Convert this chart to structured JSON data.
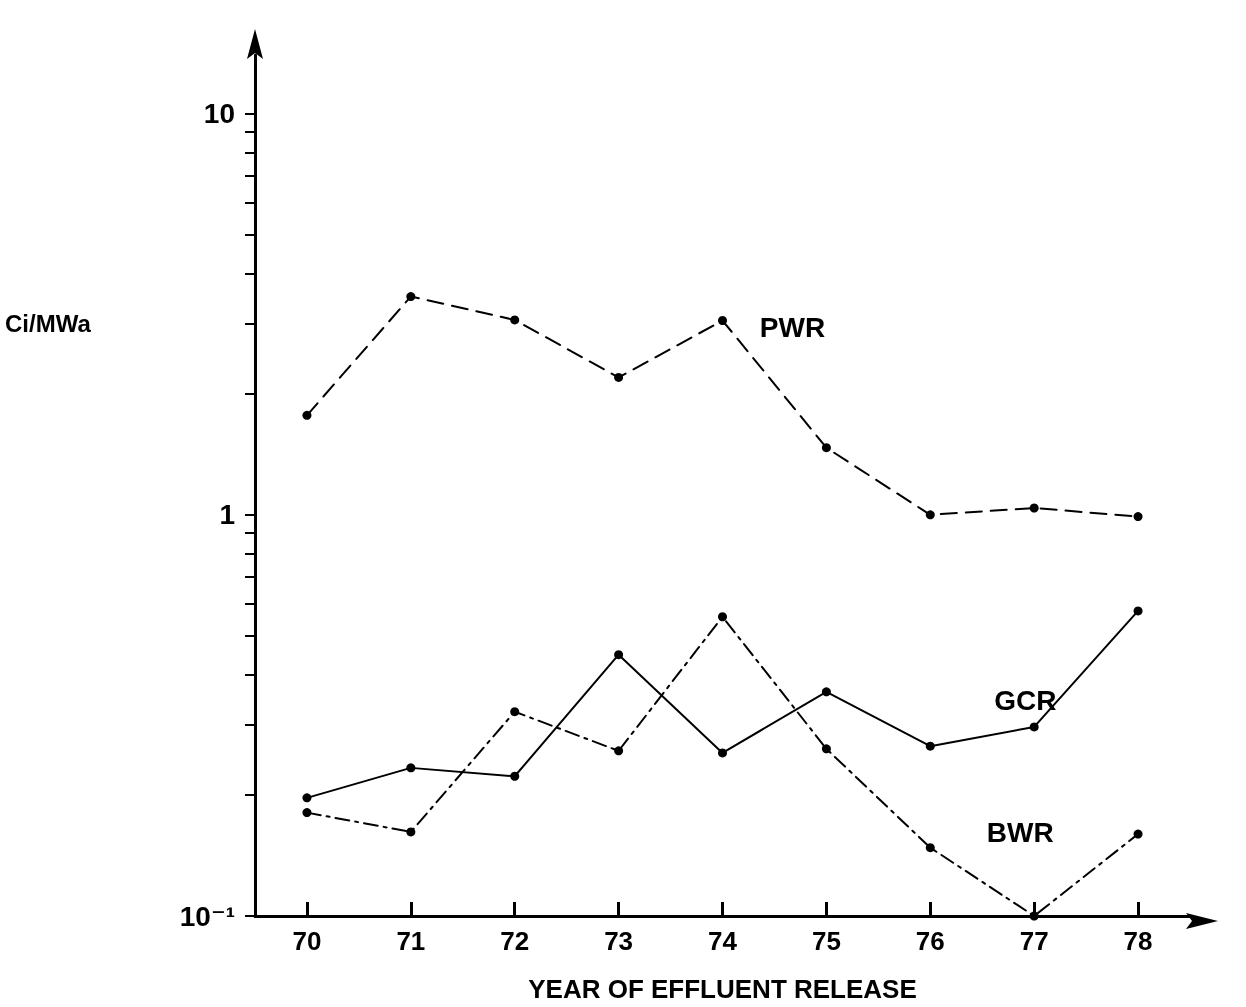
{
  "chart_data": {
    "type": "line",
    "xlabel": "YEAR OF EFFLUENT RELEASE",
    "ylabel": "Ci/MWa",
    "categories": [
      "70",
      "71",
      "72",
      "73",
      "74",
      "75",
      "76",
      "77",
      "78"
    ],
    "series": [
      {
        "name": "PWR",
        "color": "#000000",
        "line_style": "dashed",
        "values": [
          1.77,
          3.5,
          3.06,
          2.2,
          3.05,
          1.47,
          1.0,
          1.04,
          0.99
        ]
      },
      {
        "name": "GCR",
        "color": "#000000",
        "line_style": "solid",
        "values": [
          0.197,
          0.234,
          0.223,
          0.448,
          0.255,
          0.362,
          0.265,
          0.296,
          0.576
        ]
      },
      {
        "name": "BWR",
        "color": "#000000",
        "line_style": "dotted",
        "values": [
          0.181,
          0.162,
          0.323,
          0.258,
          0.557,
          0.261,
          0.148,
          0.1,
          0.16
        ]
      }
    ],
    "log": true,
    "ylim": [
      0.1,
      14
    ],
    "yticks": [
      {
        "value": 0.1,
        "label": "10⁻¹"
      },
      {
        "value": 0.2,
        "label": null
      },
      {
        "value": 0.3,
        "label": null
      },
      {
        "value": 0.4,
        "label": null
      },
      {
        "value": 0.5,
        "label": null
      },
      {
        "value": 0.6,
        "label": null
      },
      {
        "value": 0.7,
        "label": null
      },
      {
        "value": 0.8,
        "label": null
      },
      {
        "value": 0.9,
        "label": null
      },
      {
        "value": 1,
        "label": "1"
      },
      {
        "value": 2,
        "label": null
      },
      {
        "value": 3,
        "label": null
      },
      {
        "value": 4,
        "label": null
      },
      {
        "value": 5,
        "label": null
      },
      {
        "value": 6,
        "label": null
      },
      {
        "value": 7,
        "label": null
      },
      {
        "value": 8,
        "label": null
      },
      {
        "value": 9,
        "label": null
      },
      {
        "value": 10,
        "label": "10"
      }
    ],
    "marker": "circle",
    "grid": false,
    "legend": false
  }
}
